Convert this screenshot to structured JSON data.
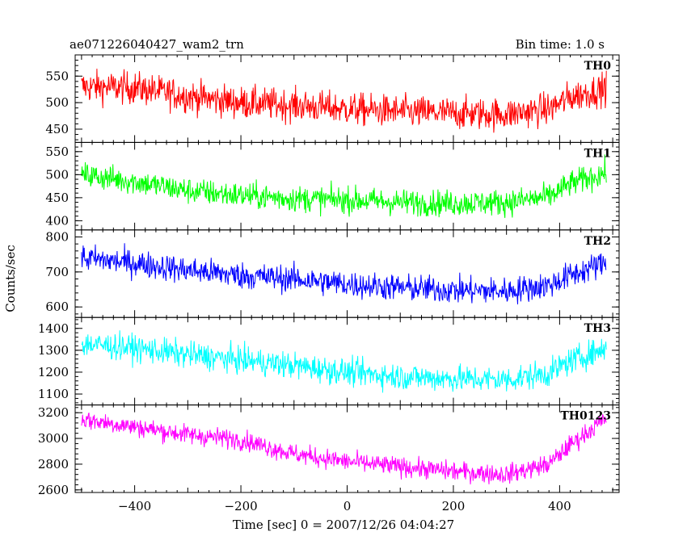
{
  "header": {
    "title": "ae071226040427_wam2_trn",
    "bin_time": "Bin time: 1.0 s"
  },
  "chart_data": {
    "type": "line",
    "xlabel": "Time [sec] 0 = 2007/12/26 04:04:27",
    "ylabel": "Counts/sec",
    "xlim": [
      -512,
      512
    ],
    "x_ticks": [
      -400,
      -200,
      0,
      200,
      400
    ],
    "x_range_data": [
      -500,
      488
    ],
    "series": [
      {
        "name": "TH0",
        "color": "#ff0000",
        "ylim": [
          425,
          590
        ],
        "y_ticks": [
          450,
          500,
          550
        ],
        "baseline": [
          [
            -500,
            530
          ],
          [
            -400,
            528
          ],
          [
            -300,
            512
          ],
          [
            -200,
            500
          ],
          [
            -100,
            495
          ],
          [
            0,
            488
          ],
          [
            100,
            483
          ],
          [
            200,
            480
          ],
          [
            300,
            478
          ],
          [
            380,
            488
          ],
          [
            420,
            510
          ],
          [
            488,
            528
          ]
        ],
        "noise": 30
      },
      {
        "name": "TH1",
        "color": "#00ff00",
        "ylim": [
          380,
          570
        ],
        "y_ticks": [
          400,
          450,
          500,
          550
        ],
        "baseline": [
          [
            -500,
            500
          ],
          [
            -400,
            485
          ],
          [
            -300,
            465
          ],
          [
            -200,
            455
          ],
          [
            -100,
            448
          ],
          [
            0,
            445
          ],
          [
            100,
            440
          ],
          [
            200,
            438
          ],
          [
            300,
            440
          ],
          [
            380,
            452
          ],
          [
            420,
            480
          ],
          [
            488,
            505
          ]
        ],
        "noise": 28
      },
      {
        "name": "TH2",
        "color": "#0000ff",
        "ylim": [
          570,
          820
        ],
        "y_ticks": [
          600,
          700,
          800
        ],
        "baseline": [
          [
            -500,
            740
          ],
          [
            -400,
            725
          ],
          [
            -300,
            705
          ],
          [
            -200,
            690
          ],
          [
            -100,
            680
          ],
          [
            0,
            665
          ],
          [
            100,
            655
          ],
          [
            200,
            648
          ],
          [
            300,
            645
          ],
          [
            380,
            662
          ],
          [
            420,
            690
          ],
          [
            488,
            728
          ]
        ],
        "noise": 38
      },
      {
        "name": "TH3",
        "color": "#00ffff",
        "ylim": [
          1050,
          1450
        ],
        "y_ticks": [
          1100,
          1200,
          1300,
          1400
        ],
        "baseline": [
          [
            -500,
            1330
          ],
          [
            -400,
            1310
          ],
          [
            -300,
            1280
          ],
          [
            -200,
            1255
          ],
          [
            -100,
            1230
          ],
          [
            0,
            1200
          ],
          [
            100,
            1180
          ],
          [
            200,
            1170
          ],
          [
            300,
            1165
          ],
          [
            380,
            1195
          ],
          [
            420,
            1250
          ],
          [
            488,
            1310
          ]
        ],
        "noise": 60
      },
      {
        "name": "TH0123",
        "color": "#ff00ff",
        "ylim": [
          2580,
          3260
        ],
        "y_ticks": [
          2600,
          2800,
          3000,
          3200
        ],
        "baseline": [
          [
            -500,
            3150
          ],
          [
            -400,
            3090
          ],
          [
            -300,
            3030
          ],
          [
            -200,
            2990
          ],
          [
            -100,
            2880
          ],
          [
            0,
            2820
          ],
          [
            100,
            2780
          ],
          [
            200,
            2745
          ],
          [
            300,
            2720
          ],
          [
            380,
            2800
          ],
          [
            420,
            2950
          ],
          [
            488,
            3160
          ]
        ],
        "noise": 75
      }
    ]
  }
}
